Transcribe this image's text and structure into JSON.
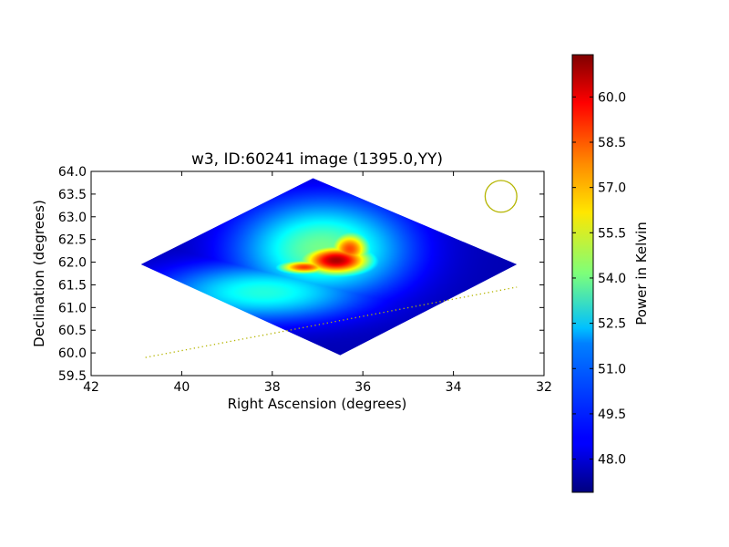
{
  "chart_data": {
    "type": "heatmap",
    "title": "w3, ID:60241 image (1395.0,YY)",
    "xlabel": "Right Ascension (degrees)",
    "ylabel": "Declination (degrees)",
    "xlim": [
      42,
      32
    ],
    "ylim": [
      59.5,
      64.0
    ],
    "x_ticks": [
      42,
      40,
      38,
      36,
      34,
      32
    ],
    "x_tick_labels": [
      "42",
      "40",
      "38",
      "36",
      "34",
      "32"
    ],
    "y_ticks": [
      59.5,
      60.0,
      60.5,
      61.0,
      61.5,
      62.0,
      62.5,
      63.0,
      63.5,
      64.0
    ],
    "y_tick_labels": [
      "59.5",
      "60.0",
      "60.5",
      "61.0",
      "61.5",
      "62.0",
      "62.5",
      "63.0",
      "63.5",
      "64.0"
    ],
    "grid": false,
    "colormap": "jet",
    "colorbar": {
      "label": "Power in Kelvin",
      "range": [
        46.9,
        61.4
      ],
      "ticks": [
        48.0,
        49.5,
        51.0,
        52.5,
        54.0,
        55.5,
        57.0,
        58.5,
        60.0
      ],
      "tick_labels": [
        "48.0",
        "49.5",
        "51.0",
        "52.5",
        "54.0",
        "55.5",
        "57.0",
        "58.5",
        "60.0"
      ]
    },
    "map_outline": [
      {
        "ra": 40.9,
        "dec": 61.95
      },
      {
        "ra": 37.1,
        "dec": 63.85
      },
      {
        "ra": 32.6,
        "dec": 61.95
      },
      {
        "ra": 36.5,
        "dec": 59.95
      }
    ],
    "emission_components": [
      {
        "ra": 36.6,
        "dec": 62.05,
        "peak": 60.8,
        "sigma_ra": 0.6,
        "sigma_dec": 0.25
      },
      {
        "ra": 37.3,
        "dec": 61.9,
        "peak": 58.8,
        "sigma_ra": 0.45,
        "sigma_dec": 0.12
      },
      {
        "ra": 36.3,
        "dec": 62.3,
        "peak": 58.6,
        "sigma_ra": 0.35,
        "sigma_dec": 0.3
      },
      {
        "ra": 36.9,
        "dec": 62.3,
        "peak": 54.0,
        "sigma_ra": 1.3,
        "sigma_dec": 0.75
      },
      {
        "ra": 38.2,
        "dec": 61.35,
        "peak": 52.8,
        "sigma_ra": 1.6,
        "sigma_dec": 0.45
      },
      {
        "ra": 36.7,
        "dec": 61.7,
        "peak": 51.5,
        "sigma_ra": 1.0,
        "sigma_dec": 0.4
      }
    ],
    "background_level": 47.6,
    "beam_circle": {
      "ra": 32.95,
      "dec": 63.45,
      "radius_deg": 0.35,
      "color": "#b5b500"
    },
    "dotted_line": {
      "points": [
        {
          "ra": 40.8,
          "dec": 59.9
        },
        {
          "ra": 32.6,
          "dec": 61.45
        }
      ],
      "color": "#b5b500"
    }
  }
}
